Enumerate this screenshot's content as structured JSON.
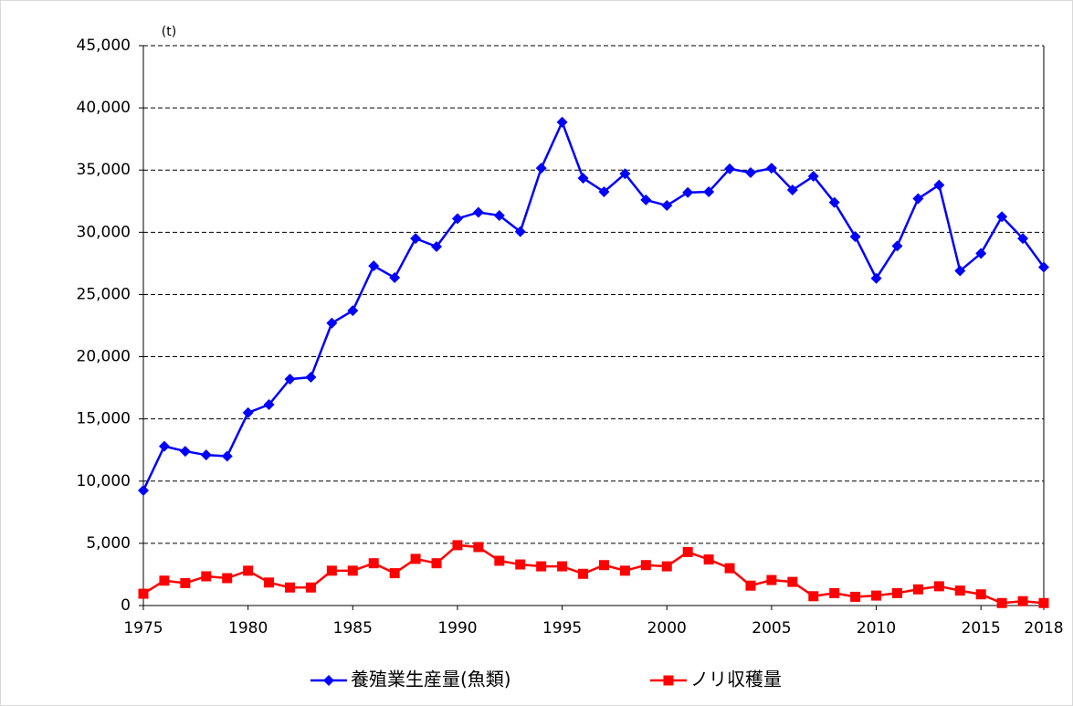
{
  "chart_data": {
    "type": "line",
    "y_unit_label": "(t)",
    "x": [
      1975,
      1976,
      1977,
      1978,
      1979,
      1980,
      1981,
      1982,
      1983,
      1984,
      1985,
      1986,
      1987,
      1988,
      1989,
      1990,
      1991,
      1992,
      1993,
      1994,
      1995,
      1996,
      1997,
      1998,
      1999,
      2000,
      2001,
      2002,
      2003,
      2004,
      2005,
      2006,
      2007,
      2008,
      2009,
      2010,
      2011,
      2012,
      2013,
      2014,
      2015,
      2016,
      2017,
      2018
    ],
    "series": [
      {
        "name": "養殖業生産量(魚類)",
        "color": "#0000ff",
        "marker": "diamond",
        "values": [
          9250,
          12800,
          12400,
          12100,
          12000,
          15500,
          16150,
          18200,
          18350,
          22700,
          23700,
          27300,
          26350,
          29500,
          28850,
          31100,
          31600,
          31350,
          30050,
          35150,
          38850,
          34350,
          33250,
          34700,
          32600,
          32150,
          33200,
          33250,
          35100,
          34800,
          35150,
          33400,
          34500,
          32400,
          29650,
          26300,
          28900,
          32700,
          33800,
          26900,
          28300,
          31250,
          29500,
          27200
        ]
      },
      {
        "name": "ノリ収穫量",
        "color": "#ff0000",
        "marker": "square",
        "values": [
          950,
          2000,
          1800,
          2350,
          2200,
          2800,
          1850,
          1450,
          1450,
          2800,
          2800,
          3400,
          2600,
          3750,
          3400,
          4850,
          4700,
          3600,
          3300,
          3150,
          3150,
          2550,
          3250,
          2800,
          3250,
          3150,
          4300,
          3700,
          3000,
          1600,
          2050,
          1900,
          750,
          1000,
          700,
          800,
          1000,
          1300,
          1550,
          1200,
          900,
          200,
          350,
          200
        ]
      }
    ],
    "xlim": [
      1975,
      2018
    ],
    "xticks": [
      1975,
      1980,
      1985,
      1990,
      1995,
      2000,
      2005,
      2010,
      2015,
      2018
    ],
    "ylim": [
      0,
      45000
    ],
    "yticks": [
      0,
      {
        "value": 5000,
        "label": "5,000"
      },
      {
        "value": 10000,
        "label": "10,000"
      },
      {
        "value": 15000,
        "label": "15,000"
      },
      {
        "value": 20000,
        "label": "20,000"
      },
      {
        "value": 25000,
        "label": "25,000"
      },
      {
        "value": 30000,
        "label": "30,000"
      },
      {
        "value": 35000,
        "label": "35,000"
      },
      {
        "value": 40000,
        "label": "40,000"
      },
      {
        "value": 45000,
        "label": "45,000"
      }
    ],
    "grid": true,
    "legend": "bottom"
  }
}
